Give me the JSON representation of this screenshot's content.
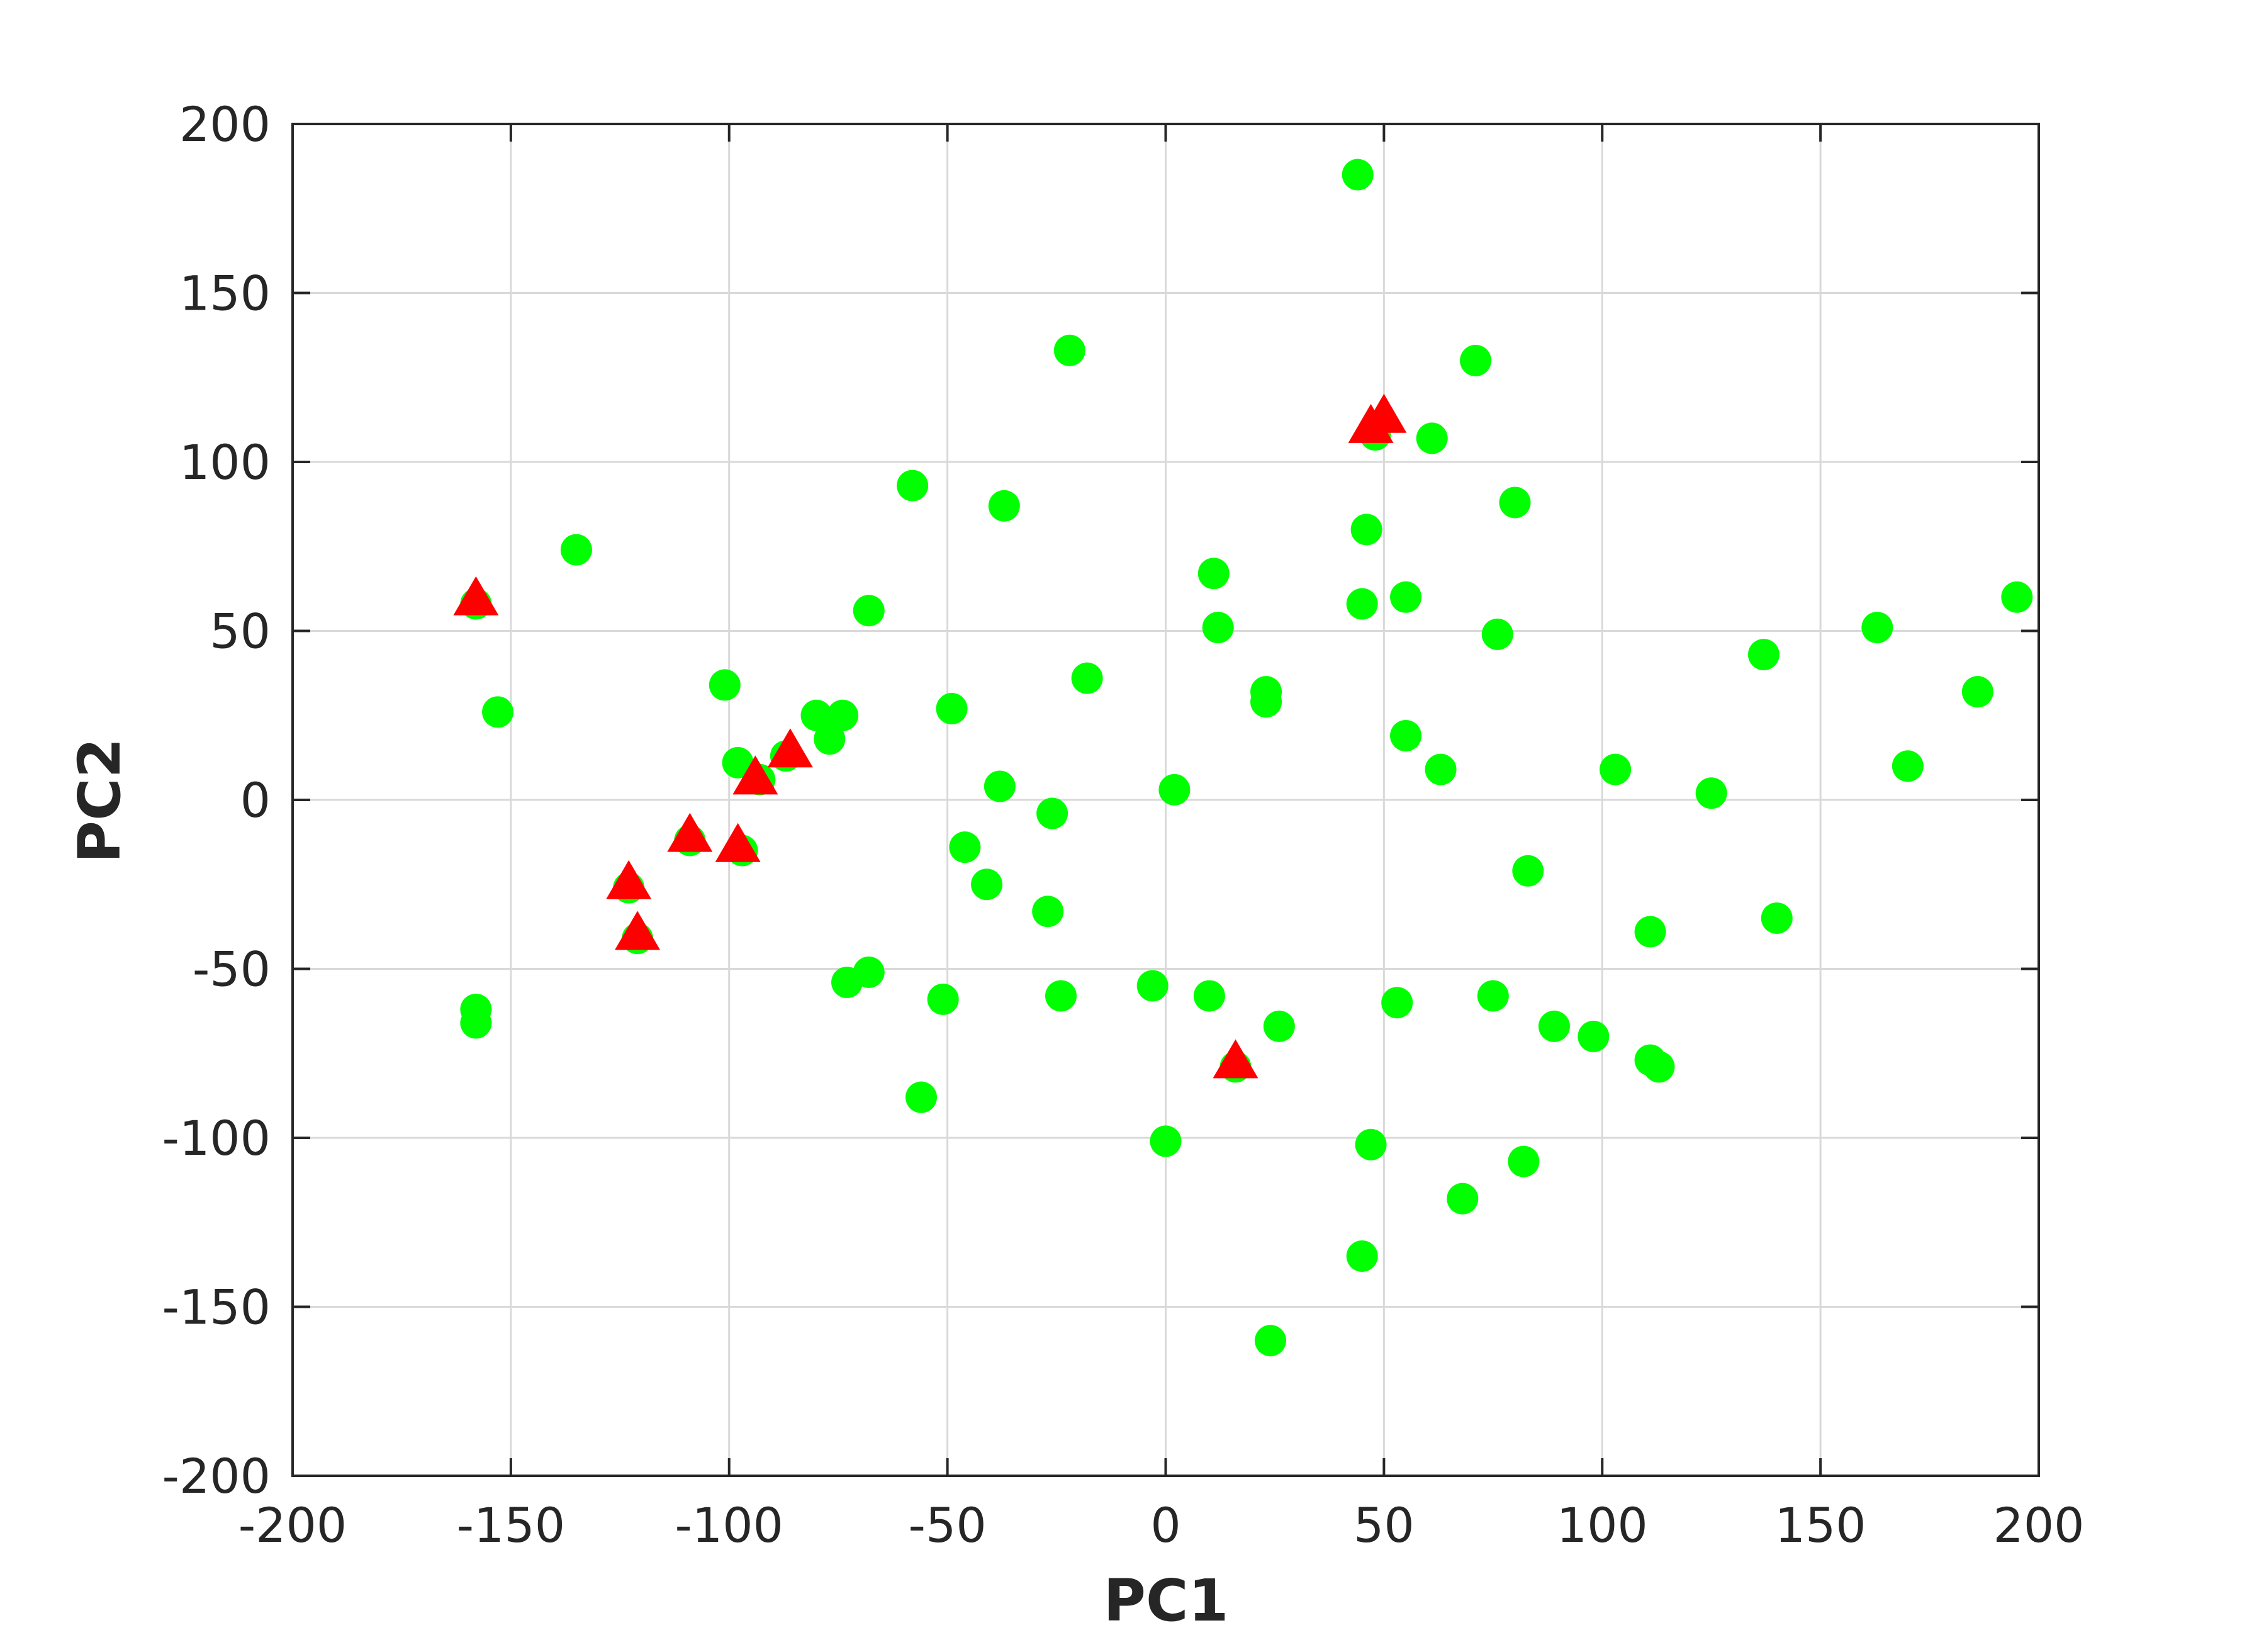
{
  "chart_data": {
    "type": "scatter",
    "title": "",
    "xlabel": "PC1",
    "ylabel": "PC2",
    "xlim": [
      -200,
      200
    ],
    "ylim": [
      -200,
      200
    ],
    "xticks": [
      "-200",
      "-150",
      "-100",
      "-50",
      "0",
      "50",
      "100",
      "150",
      "200"
    ],
    "yticks": [
      "-200",
      "-150",
      "-100",
      "-50",
      "0",
      "50",
      "100",
      "150",
      "200"
    ],
    "grid": true,
    "colors": {
      "circle": "#00ff00",
      "triangle": "#ff0000",
      "axis": "#262626",
      "grid": "#d9d9d9"
    },
    "series": [
      {
        "marker": "circle",
        "color": "#00ff00",
        "points": [
          [
            44,
            185
          ],
          [
            -22,
            133
          ],
          [
            71,
            130
          ],
          [
            48,
            108
          ],
          [
            61,
            107
          ],
          [
            -58,
            93
          ],
          [
            -37,
            87
          ],
          [
            80,
            88
          ],
          [
            -135,
            74
          ],
          [
            46,
            80
          ],
          [
            11,
            67
          ],
          [
            -158,
            58
          ],
          [
            45,
            58
          ],
          [
            55,
            60
          ],
          [
            -68,
            56
          ],
          [
            12,
            51
          ],
          [
            76,
            49
          ],
          [
            137,
            43
          ],
          [
            163,
            51
          ],
          [
            195,
            60
          ],
          [
            186,
            32
          ],
          [
            -153,
            26
          ],
          [
            -101,
            34
          ],
          [
            -18,
            36
          ],
          [
            23,
            32
          ],
          [
            23,
            29
          ],
          [
            -80,
            25
          ],
          [
            -74,
            25
          ],
          [
            -77,
            18
          ],
          [
            -49,
            27
          ],
          [
            55,
            19
          ],
          [
            -87,
            13
          ],
          [
            -98,
            11
          ],
          [
            170,
            10
          ],
          [
            103,
            9
          ],
          [
            63,
            9
          ],
          [
            -93,
            6
          ],
          [
            2,
            3
          ],
          [
            125,
            2
          ],
          [
            -38,
            4
          ],
          [
            -26,
            -4
          ],
          [
            -109,
            -12
          ],
          [
            -46,
            -14
          ],
          [
            -97,
            -15
          ],
          [
            -41,
            -25
          ],
          [
            -123,
            -26
          ],
          [
            83,
            -21
          ],
          [
            140,
            -35
          ],
          [
            -27,
            -33
          ],
          [
            111,
            -39
          ],
          [
            -121,
            -41
          ],
          [
            -158,
            -62
          ],
          [
            -158,
            -66
          ],
          [
            -68,
            -51
          ],
          [
            -73,
            -54
          ],
          [
            -51,
            -59
          ],
          [
            -24,
            -58
          ],
          [
            -3,
            -55
          ],
          [
            10,
            -58
          ],
          [
            53,
            -60
          ],
          [
            75,
            -58
          ],
          [
            26,
            -67
          ],
          [
            89,
            -67
          ],
          [
            98,
            -70
          ],
          [
            111,
            -77
          ],
          [
            113,
            -79
          ],
          [
            16,
            -79
          ],
          [
            -56,
            -88
          ],
          [
            0,
            -101
          ],
          [
            47,
            -102
          ],
          [
            82,
            -107
          ],
          [
            68,
            -118
          ],
          [
            45,
            -135
          ],
          [
            24,
            -160
          ]
        ]
      },
      {
        "marker": "triangle",
        "color": "#ff0000",
        "points": [
          [
            -158,
            59
          ],
          [
            -123,
            -25
          ],
          [
            -121,
            -40
          ],
          [
            -109,
            -11
          ],
          [
            -98,
            -14
          ],
          [
            -94,
            6
          ],
          [
            -86,
            14
          ],
          [
            16,
            -78
          ],
          [
            47,
            110
          ],
          [
            50,
            113
          ]
        ]
      }
    ]
  }
}
